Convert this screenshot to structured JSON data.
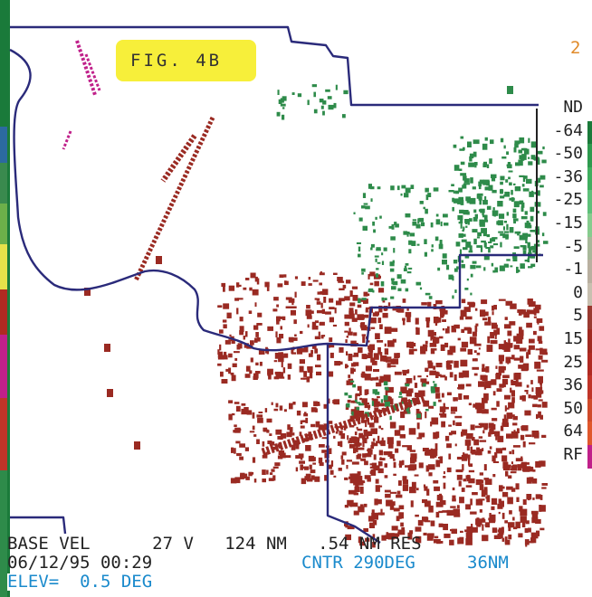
{
  "figure_label": "FIG. 4B",
  "corner_digit": "2",
  "legend": {
    "items": [
      {
        "label": "ND",
        "color": "#ffffff"
      },
      {
        "label": "-64",
        "color": "#1a7a3a"
      },
      {
        "label": "-50",
        "color": "#2d9a4e"
      },
      {
        "label": "-36",
        "color": "#3fae5e"
      },
      {
        "label": "-25",
        "color": "#5ec07a"
      },
      {
        "label": "-15",
        "color": "#86cc8e"
      },
      {
        "label": "-5",
        "color": "#a8b89a"
      },
      {
        "label": "-1",
        "color": "#b9b0a0"
      },
      {
        "label": "0",
        "color": "#c8c0b0"
      },
      {
        "label": "5",
        "color": "#9a3a30"
      },
      {
        "label": "15",
        "color": "#a02a20"
      },
      {
        "label": "25",
        "color": "#b02a22"
      },
      {
        "label": "36",
        "color": "#c03428"
      },
      {
        "label": "50",
        "color": "#d04a2a"
      },
      {
        "label": "64",
        "color": "#e0582c"
      },
      {
        "label": "RF",
        "color": "#c0208a"
      }
    ]
  },
  "footer": {
    "line1": "BASE VEL      27 V   124 NM   .54 NM RES",
    "line2_left": "06/12/95 00:29",
    "line2_right": "CNTR 290DEG     36NM",
    "line3": "ELEV=  0.5 DEG"
  },
  "colors": {
    "boundary": "#2a2a7a",
    "inbound_green": "#2e8b4a",
    "outbound_red": "#9a2a22",
    "footer_black": "#222222",
    "footer_blue": "#1a8acc",
    "figure_highlight": "#f7ef3a",
    "rf_magenta": "#c0208a"
  }
}
